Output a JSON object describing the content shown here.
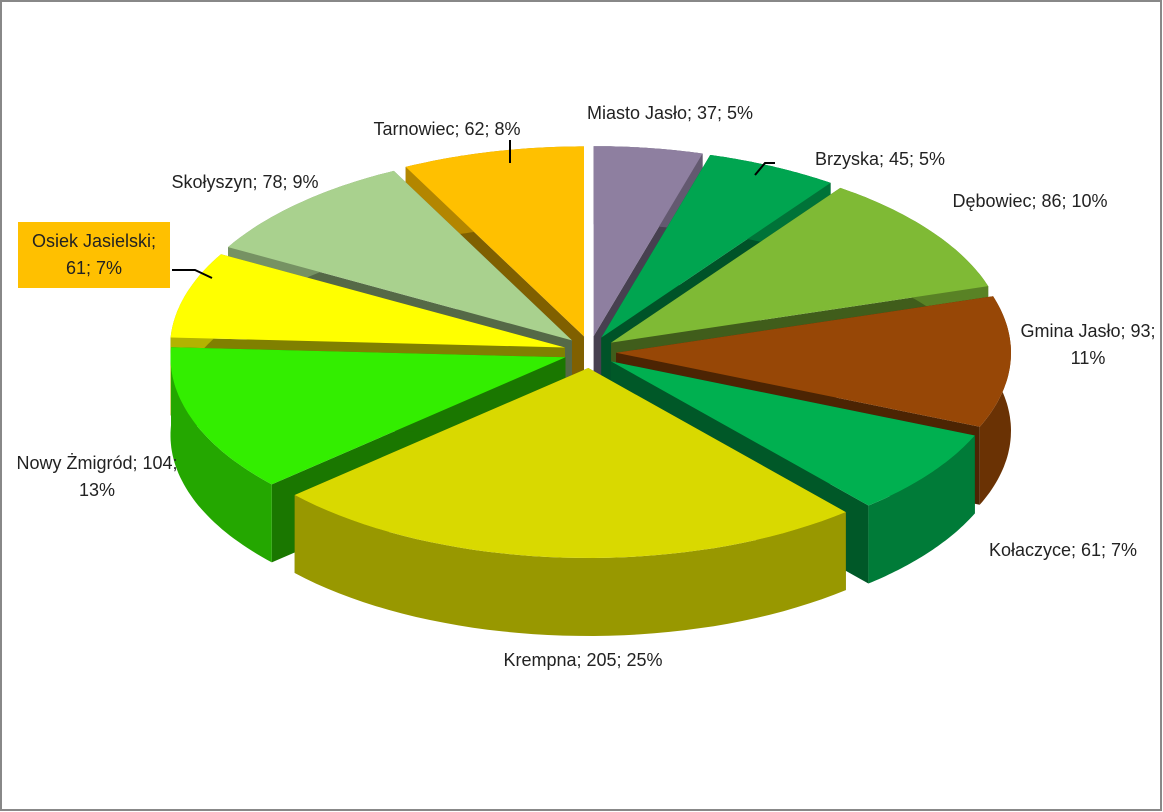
{
  "chart_data": {
    "type": "pie3d",
    "categories": [
      "Miasto Jasło",
      "Brzyska",
      "Dębowiec",
      "Gmina Jasło",
      "Kołaczyce",
      "Krempna",
      "Nowy Żmigród",
      "Osiek Jasielski",
      "Skołyszyn",
      "Tarnowiec"
    ],
    "values": [
      37,
      45,
      86,
      93,
      61,
      205,
      104,
      61,
      78,
      62
    ],
    "value_labels": [
      "Miasto Jasło; 37; 5%",
      "Brzyska; 45; 5%",
      "Dębowiec; 86; 10%",
      "Gmina Jasło; 93; 11%",
      "Kołaczyce; 61; 7%",
      "Krempna; 205; 25%",
      "Nowy Żmigród; 104; 13%",
      "Osiek Jasielski; 61; 7%",
      "Skołyszyn; 78; 9%",
      "Tarnowiec; 62; 8%"
    ],
    "colors": [
      "#8e7fa0",
      "#00a550",
      "#7fba35",
      "#974706",
      "#00b050",
      "#d9d900",
      "#33ee00",
      "#ffff00",
      "#a9d18e",
      "#ffc000"
    ]
  }
}
